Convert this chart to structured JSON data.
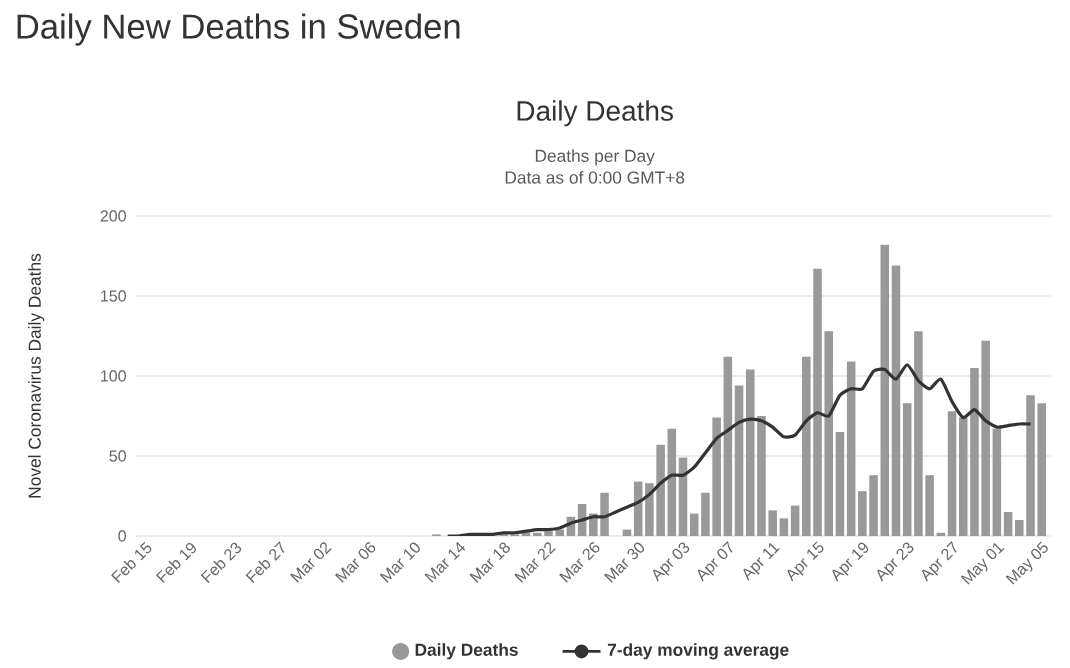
{
  "chart_data": {
    "type": "bar",
    "title": "Daily Deaths",
    "subtitle": "Deaths per Day",
    "annotations": [
      "Daily New Deaths in Sweden",
      "Data as of 0:00 GMT+8"
    ],
    "ylabel": "Novel Coronavirus Daily Deaths",
    "categories": [
      "Feb 15",
      null,
      null,
      null,
      "Feb 19",
      null,
      null,
      null,
      "Feb 23",
      null,
      null,
      null,
      "Feb 27",
      null,
      null,
      null,
      "Mar 02",
      null,
      null,
      null,
      "Mar 06",
      null,
      null,
      null,
      "Mar 10",
      null,
      null,
      null,
      "Mar 14",
      null,
      null,
      null,
      "Mar 18",
      null,
      null,
      null,
      "Mar 22",
      null,
      null,
      null,
      "Mar 26",
      null,
      null,
      null,
      "Mar 30",
      null,
      null,
      null,
      "Apr 03",
      null,
      null,
      null,
      "Apr 07",
      null,
      null,
      null,
      "Apr 11",
      null,
      null,
      null,
      "Apr 15",
      null,
      null,
      null,
      "Apr 19",
      null,
      null,
      null,
      "Apr 23",
      null,
      null,
      null,
      "Apr 27",
      null,
      null,
      null,
      "May 01",
      null,
      null,
      null,
      "May 05"
    ],
    "series": [
      {
        "name": "Daily Deaths",
        "color": "#999999",
        "values": [
          0,
          0,
          0,
          0,
          0,
          0,
          0,
          0,
          0,
          0,
          0,
          0,
          0,
          0,
          0,
          0,
          0,
          0,
          0,
          0,
          0,
          0,
          0,
          0,
          0,
          0,
          1,
          0,
          0,
          0,
          1,
          null,
          2,
          1,
          3,
          2,
          3,
          4,
          12,
          20,
          14,
          27,
          0,
          4,
          34,
          33,
          57,
          67,
          49,
          14,
          27,
          74,
          112,
          94,
          104,
          75,
          16,
          11,
          19,
          112,
          167,
          128,
          65,
          109,
          28,
          38,
          182,
          169,
          83,
          128,
          38,
          2,
          78,
          74,
          105,
          122,
          67,
          15,
          10,
          88,
          83
        ]
      },
      {
        "name": "7-day moving average",
        "type": "line",
        "color": "#333333",
        "values": [
          null,
          null,
          null,
          null,
          null,
          null,
          null,
          null,
          null,
          null,
          null,
          null,
          null,
          null,
          null,
          null,
          null,
          null,
          null,
          null,
          null,
          null,
          null,
          null,
          null,
          null,
          null,
          0,
          0,
          1,
          1,
          1,
          2,
          2,
          3,
          4,
          4,
          5,
          8,
          10,
          12,
          12,
          15,
          18,
          21,
          26,
          33,
          38,
          38,
          43,
          52,
          61,
          66,
          71,
          73,
          72,
          68,
          62,
          63,
          72,
          77,
          75,
          88,
          92,
          92,
          103,
          104,
          98,
          107,
          97,
          92,
          98,
          84,
          74,
          79,
          72,
          68,
          69,
          70,
          70,
          null
        ]
      }
    ],
    "ylim": [
      0,
      200
    ],
    "yticks": [
      0,
      50,
      100,
      150,
      200
    ],
    "grid": "y",
    "legend": "bottom"
  }
}
